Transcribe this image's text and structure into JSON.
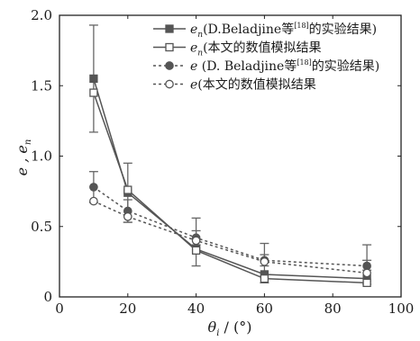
{
  "chart_data": {
    "type": "line",
    "xlabel_symbol": "θ",
    "xlabel_sub": "i",
    "xlabel_unit": " / (°)",
    "ylabel": "e , e",
    "ylabel_sub": "n",
    "xlim": [
      0,
      100
    ],
    "ylim": [
      0,
      2.0
    ],
    "xticks": [
      0,
      20,
      40,
      60,
      80,
      100
    ],
    "yticks": [
      0,
      0.5,
      1.0,
      1.5,
      2.0
    ],
    "xtick_labels": [
      "0",
      "20",
      "40",
      "60",
      "80",
      "100"
    ],
    "ytick_labels": [
      "0",
      "0.5",
      "1.0",
      "1.5",
      "2.0"
    ],
    "grid": false,
    "legend_position": "top-right",
    "series": [
      {
        "name": "en(D.Beladjine等[18]的实验结果)",
        "legend_symbol": "e",
        "legend_sub": "n",
        "legend_text_a": "(D.Beladjine等",
        "legend_sup": "[18]",
        "legend_text_b": "的实验结果)",
        "marker": "square-filled",
        "line": "solid",
        "color": "#555555",
        "x": [
          10,
          20,
          40,
          60,
          90
        ],
        "y": [
          1.55,
          0.74,
          0.34,
          0.16,
          0.13
        ],
        "err_lo": [
          1.17,
          0.53,
          0.22,
          0.1,
          0.09
        ],
        "err_hi": [
          1.93,
          0.95,
          0.56,
          0.38,
          0.37
        ]
      },
      {
        "name": "en(本文的数值模拟结果",
        "legend_symbol": "e",
        "legend_sub": "n",
        "legend_text_a": "(本文的数值模拟结果",
        "legend_sup": "",
        "legend_text_b": "",
        "marker": "square-open",
        "line": "solid",
        "color": "#555555",
        "x": [
          10,
          20,
          40,
          60,
          90
        ],
        "y": [
          1.45,
          0.76,
          0.33,
          0.13,
          0.1
        ],
        "err_lo": [],
        "err_hi": []
      },
      {
        "name": "e (D. Beladjine等[18]的实验结果)",
        "legend_symbol": "e",
        "legend_sub": "",
        "legend_text_a": " (D. Beladjine等",
        "legend_sup": "[18]",
        "legend_text_b": "的实验结果)",
        "marker": "circle-filled",
        "line": "dotted",
        "color": "#555555",
        "x": [
          10,
          20,
          40,
          60,
          90
        ],
        "y": [
          0.78,
          0.61,
          0.42,
          0.26,
          0.22
        ],
        "err_lo": [
          0.67,
          0.53,
          0.37,
          0.22,
          0.19
        ],
        "err_hi": [
          0.89,
          0.69,
          0.47,
          0.3,
          0.26
        ]
      },
      {
        "name": "e(本文的数值模拟结果",
        "legend_symbol": "e",
        "legend_sub": "",
        "legend_text_a": "(本文的数值模拟结果",
        "legend_sup": "",
        "legend_text_b": "",
        "marker": "circle-open",
        "line": "dotted",
        "color": "#555555",
        "x": [
          10,
          20,
          40,
          60,
          90
        ],
        "y": [
          0.68,
          0.57,
          0.4,
          0.25,
          0.17
        ],
        "err_lo": [],
        "err_hi": []
      }
    ]
  }
}
